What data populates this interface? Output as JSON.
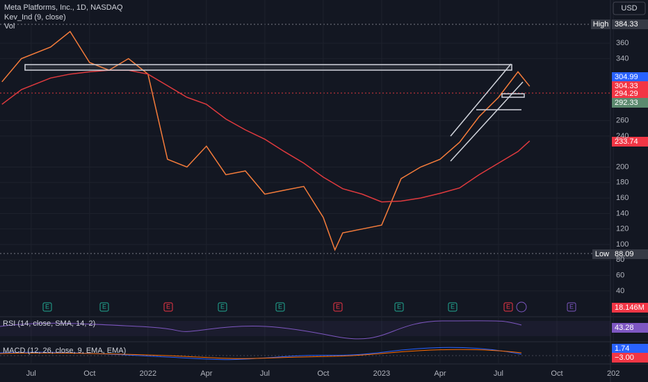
{
  "header": {
    "symbol": "Meta Platforms, Inc., 1D, NASDAQ",
    "indicator": "Kev_Ind (9, close)",
    "volume": "Vol",
    "currency": "USD"
  },
  "chart_data": {
    "type": "line",
    "x": [
      -1.5,
      -0.5,
      1,
      2,
      3,
      4,
      5,
      6,
      7,
      8,
      9,
      10,
      11,
      12,
      13,
      14,
      15,
      15.6,
      16,
      17,
      18,
      19,
      20,
      21,
      22,
      23,
      24,
      25,
      25.6
    ],
    "series": [
      {
        "color": "#f57c3b",
        "values": [
          310,
          340,
          355,
          375,
          335,
          325,
          340,
          320,
          210,
          200,
          227,
          190,
          195,
          165,
          170,
          175,
          135,
          93,
          115,
          120,
          125,
          185,
          200,
          210,
          232,
          265,
          290,
          323,
          304.33
        ]
      },
      {
        "color": "#e03a3e",
        "values": [
          281,
          300,
          315,
          320,
          323,
          325,
          325,
          320,
          305,
          290,
          281,
          262,
          248,
          236,
          220,
          205,
          187,
          178,
          172,
          165,
          155,
          156,
          160,
          166,
          173,
          190,
          205,
          220,
          233.74
        ]
      }
    ],
    "xlim": [
      -1.6,
      29.75
    ],
    "ylim": [
      7.6,
      415.7
    ],
    "yticks": [
      360,
      340,
      260,
      240,
      200,
      180,
      160,
      140,
      120,
      100,
      80,
      60,
      40
    ],
    "xticks": [
      {
        "value": 0,
        "label": "Jul"
      },
      {
        "value": 3,
        "label": "Oct"
      },
      {
        "value": 6,
        "label": "2022"
      },
      {
        "value": 9,
        "label": "Apr"
      },
      {
        "value": 12,
        "label": "Jul"
      },
      {
        "value": 15,
        "label": "Oct"
      },
      {
        "value": 18,
        "label": "2023"
      },
      {
        "value": 21,
        "label": "Apr"
      },
      {
        "value": 24,
        "label": "Jul"
      },
      {
        "value": 27,
        "label": "Oct"
      },
      {
        "value": 29.9,
        "label": "202"
      }
    ]
  },
  "badges": {
    "high_label": "High",
    "high": "384.33",
    "b1": "304.99",
    "b2": "304.33",
    "b3": "294.29",
    "b4": "292.33",
    "ma": "233.74",
    "low_label": "Low",
    "low": "88.09",
    "vol": "18.146M",
    "rsi": "43.28",
    "macd": "1.74",
    "signal": "−3.00"
  },
  "rsi_title": "RSI (14, close, SMA, 14, 2)",
  "macd_title": "MACD (12, 26, close, 9, EMA, EMA)",
  "earnings": [
    "E",
    "E",
    "E",
    "E",
    "E",
    "E",
    "E",
    "E",
    "E",
    "E"
  ]
}
